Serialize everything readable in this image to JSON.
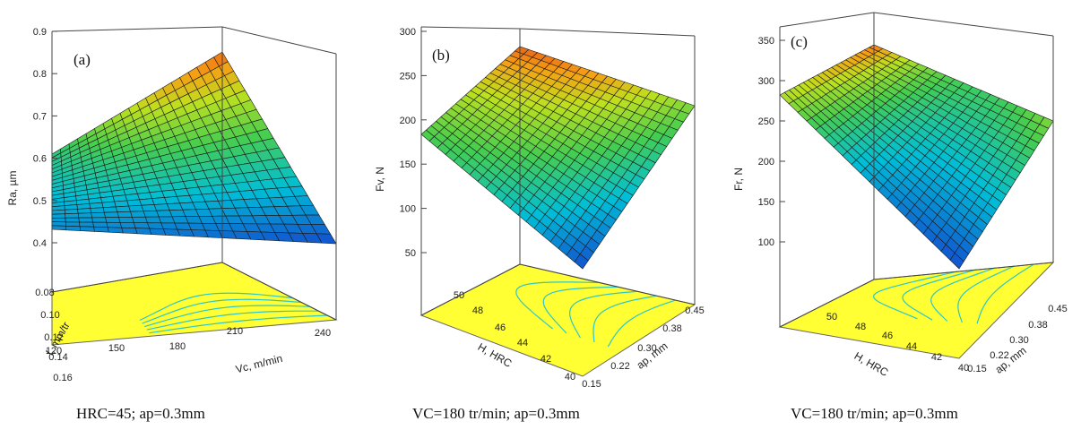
{
  "chart_data": [
    {
      "type": "surface3d",
      "panel_label": "(a)",
      "zlabel": "Ra, µm",
      "xlabel": "Vc, m/min",
      "ylabel": "f, mm/tr",
      "zticks": [
        "0.4",
        "0.5",
        "0.6",
        "0.7",
        "0.8",
        "0.9"
      ],
      "xticks": [
        "120",
        "150",
        "180",
        "210",
        "240"
      ],
      "yticks": [
        "0.08",
        "0.10",
        "0.12",
        "0.14",
        "0.16"
      ],
      "zlim": [
        0.35,
        0.9
      ],
      "corners": {
        "back_left": 0.59,
        "back_right": 0.84,
        "front_right": 0.37,
        "front_left": 0.45
      },
      "caption": "HRC=45; ap=0.3mm"
    },
    {
      "type": "surface3d",
      "panel_label": "(b)",
      "zlabel": "Fv, N",
      "xlabel": "H, HRC",
      "ylabel": "ap, mm",
      "zticks": [
        "50",
        "100",
        "150",
        "200",
        "250",
        "300"
      ],
      "xticks": [
        "40",
        "42",
        "44",
        "46",
        "48",
        "50"
      ],
      "yticks": [
        "0.15",
        "0.22",
        "0.30",
        "0.38",
        "0.45"
      ],
      "zlim": [
        0,
        300
      ],
      "corners": {
        "left": 188,
        "back": 292,
        "right": 210,
        "front": 45
      },
      "caption": "VC=180 tr/min; ap=0.3mm"
    },
    {
      "type": "surface3d",
      "panel_label": "(c)",
      "zlabel": "Fr, N",
      "xlabel": "H, HRC",
      "ylabel": "ap, mm",
      "zticks": [
        "100",
        "150",
        "200",
        "250",
        "300",
        "350"
      ],
      "xticks": [
        "40",
        "42",
        "44",
        "46",
        "48",
        "50"
      ],
      "yticks": [
        "0.15",
        "0.22",
        "0.30",
        "0.38",
        "0.45"
      ],
      "zlim": [
        50,
        350
      ],
      "corners": {
        "left": 275,
        "back": 320,
        "right": 255,
        "front": 110
      },
      "caption": "VC=180 tr/min; ap=0.3mm"
    }
  ]
}
